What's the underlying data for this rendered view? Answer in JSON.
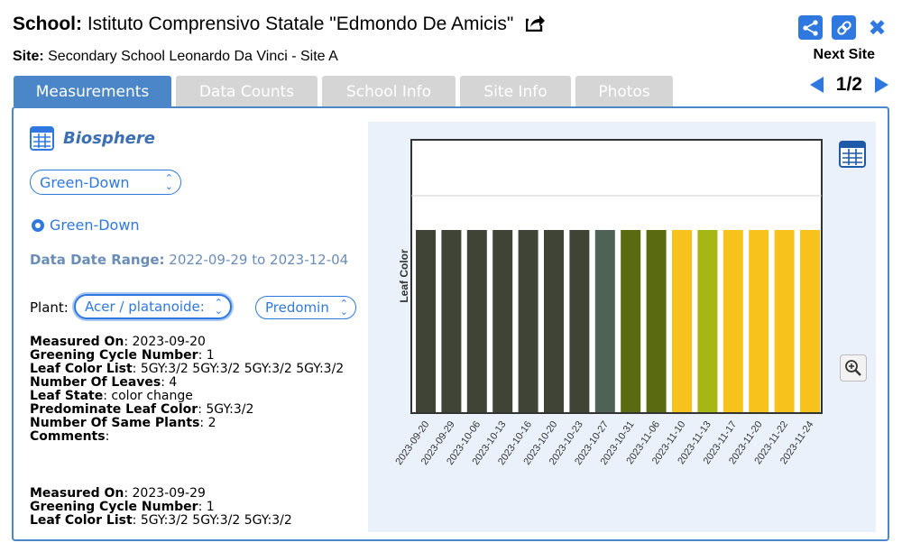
{
  "header": {
    "school_label": "School:",
    "school_name": "Istituto Comprensivo Statale \"Edmondo De Amicis\"",
    "site_label": "Site:",
    "site_name": "Secondary School Leonardo Da Vinci - Site A",
    "next_site_label": "Next Site",
    "pager": "1/2"
  },
  "tabs": [
    {
      "label": "Measurements",
      "active": true
    },
    {
      "label": "Data Counts",
      "active": false
    },
    {
      "label": "School Info",
      "active": false
    },
    {
      "label": "Site Info",
      "active": false
    },
    {
      "label": "Photos",
      "active": false
    }
  ],
  "left": {
    "section_title": "Biosphere",
    "protocol_select": "Green-Down",
    "radio_label": "Green-Down",
    "date_range_label": "Data Date Range:",
    "date_range_value": "2022-09-29 to 2023-12-04",
    "plant_label": "Plant:",
    "plant_select": "Acer / platanoides",
    "plant_select_visible": "Acer / platanoide:",
    "color_select": "Predomin",
    "measurements": [
      {
        "measured_on_label": "Measured On",
        "measured_on": "2023-09-20",
        "greening_label": "Greening Cycle Number",
        "greening": "1",
        "leaf_color_list_label": "Leaf Color List",
        "leaf_color_list": "5GY:3/2 5GY:3/2 5GY:3/2 5GY:3/2",
        "leaves_label": "Number Of Leaves",
        "leaves": "4",
        "leaf_state_label": "Leaf State",
        "leaf_state": "color change",
        "predominate_label": "Predominate Leaf Color",
        "predominate": "5GY:3/2",
        "same_plants_label": "Number Of Same Plants",
        "same_plants": "2",
        "comments_label": "Comments",
        "comments": ""
      },
      {
        "measured_on_label": "Measured On",
        "measured_on": "2023-09-29",
        "greening_label": "Greening Cycle Number",
        "greening": "1",
        "leaf_color_list_label": "Leaf Color List",
        "leaf_color_list": "5GY:3/2 5GY:3/2 5GY:3/2"
      }
    ]
  },
  "chart_data": {
    "type": "bar",
    "ylabel": "Leaf Color",
    "categories": [
      "2023-09-20",
      "2023-09-29",
      "2023-10-06",
      "2023-10-13",
      "2023-10-16",
      "2023-10-20",
      "2023-10-23",
      "2023-10-27",
      "2023-10-31",
      "2023-11-06",
      "2023-11-10",
      "2023-11-13",
      "2023-11-17",
      "2023-11-20",
      "2023-11-22",
      "2023-11-24"
    ],
    "values": [
      1,
      1,
      1,
      1,
      1,
      1,
      1,
      1,
      1,
      1,
      1,
      1,
      1,
      1,
      1,
      1
    ],
    "colors": [
      "#3f4437",
      "#3f4437",
      "#3f4437",
      "#3f4437",
      "#3f4437",
      "#3f4437",
      "#3f4437",
      "#4f6257",
      "#5a6a10",
      "#5a6a10",
      "#f7c21b",
      "#a6b614",
      "#f7c21b",
      "#f7c21b",
      "#f7c21b",
      "#f7c21b"
    ]
  },
  "colors": {
    "accent": "#2f78e0",
    "tab_active": "#4a86c8",
    "tab_inactive": "#d5d5d5"
  }
}
